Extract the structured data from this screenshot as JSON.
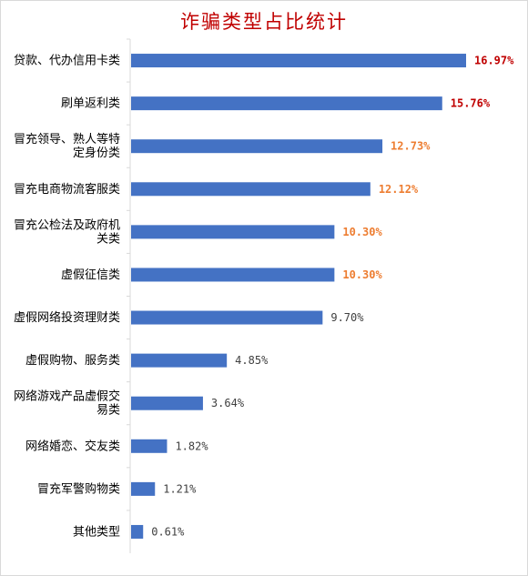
{
  "chart_data": {
    "type": "bar",
    "orientation": "horizontal",
    "title": "诈骗类型占比统计",
    "categories": [
      [
        "贷款、代办信用卡类"
      ],
      [
        "刷单返利类"
      ],
      [
        "冒充领导、熟人等特",
        "定身份类"
      ],
      [
        "冒充电商物流客服类"
      ],
      [
        "冒充公检法及政府机",
        "关类"
      ],
      [
        "虚假征信类"
      ],
      [
        "虚假网络投资理财类"
      ],
      [
        "虚假购物、服务类"
      ],
      [
        "网络游戏产品虚假交",
        "易类"
      ],
      [
        "网络婚恋、交友类"
      ],
      [
        "冒充军警购物类"
      ],
      [
        "其他类型"
      ]
    ],
    "values": [
      16.97,
      15.76,
      12.73,
      12.12,
      10.3,
      10.3,
      9.7,
      4.85,
      3.64,
      1.82,
      1.21,
      0.61
    ],
    "labels": [
      "16.97%",
      "15.76%",
      "12.73%",
      "12.12%",
      "10.30%",
      "10.30%",
      "9.70%",
      "4.85%",
      "3.64%",
      "1.82%",
      "1.21%",
      "0.61%"
    ],
    "label_colors": [
      "#c00000",
      "#c00000",
      "#ed7d31",
      "#ed7d31",
      "#ed7d31",
      "#ed7d31",
      "#404040",
      "#404040",
      "#404040",
      "#404040",
      "#404040",
      "#404040"
    ],
    "label_bold": [
      true,
      true,
      true,
      true,
      true,
      true,
      false,
      false,
      false,
      false,
      false,
      false
    ],
    "bar_color": "#4472c4",
    "xlim": [
      0,
      18
    ],
    "grid": false,
    "legend": "none"
  },
  "colors": {
    "title": "#c00000",
    "axis": "#d9d9d9",
    "category_text": "#000000"
  }
}
